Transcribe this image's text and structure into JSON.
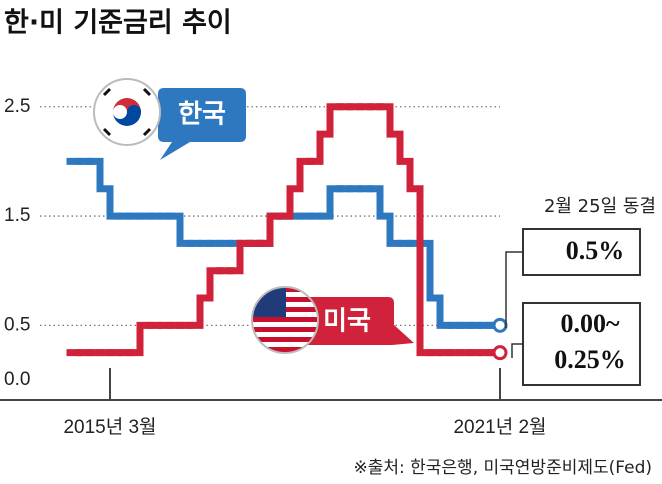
{
  "chart_data": {
    "type": "step",
    "title": "한·미 기준금리 추이",
    "source": "※출처: 한국은행, 미국연방준비제도(Fed)",
    "annotation": "2월 25일 동결",
    "categories": [
      null,
      null,
      null,
      null,
      "2015년 3월",
      null,
      null,
      null,
      null,
      null,
      null,
      null,
      null,
      null,
      null,
      null,
      null,
      null,
      null,
      null,
      null,
      null,
      null,
      null,
      null,
      null,
      null,
      null,
      null,
      null,
      null,
      null,
      null,
      null,
      null,
      null,
      null,
      null,
      null,
      null,
      null,
      null,
      null,
      "2021년 2월"
    ],
    "series": [
      {
        "name": "한국",
        "color": "#2e78c0",
        "values": [
          2.0,
          2.0,
          2.0,
          1.75,
          1.5,
          1.5,
          1.5,
          1.5,
          1.5,
          1.5,
          1.5,
          1.25,
          1.25,
          1.25,
          1.25,
          1.25,
          1.25,
          1.25,
          1.25,
          1.25,
          1.5,
          1.5,
          1.5,
          1.5,
          1.5,
          1.5,
          1.75,
          1.75,
          1.75,
          1.75,
          1.75,
          1.5,
          1.25,
          1.25,
          1.25,
          1.25,
          0.75,
          0.5,
          0.5,
          0.5,
          0.5,
          0.5,
          0.5,
          0.5
        ],
        "end_label": [
          "0.5%"
        ]
      },
      {
        "name": "미국",
        "color": "#d0223a",
        "values": [
          0.25,
          0.25,
          0.25,
          0.25,
          0.25,
          0.25,
          0.25,
          0.5,
          0.5,
          0.5,
          0.5,
          0.5,
          0.5,
          0.75,
          1.0,
          1.0,
          1.0,
          1.25,
          1.25,
          1.25,
          1.5,
          1.5,
          1.75,
          2.0,
          2.0,
          2.25,
          2.5,
          2.5,
          2.5,
          2.5,
          2.5,
          2.5,
          2.25,
          2.0,
          1.75,
          0.25,
          0.25,
          0.25,
          0.25,
          0.25,
          0.25,
          0.25,
          0.25,
          0.25
        ],
        "end_label": [
          "0.00~",
          "0.25%"
        ]
      }
    ],
    "ylim": [
      0,
      2.8
    ],
    "yticks": [
      {
        "value": 0,
        "label": "0.0"
      },
      0.5,
      1.5,
      2.5
    ],
    "grid": true
  }
}
